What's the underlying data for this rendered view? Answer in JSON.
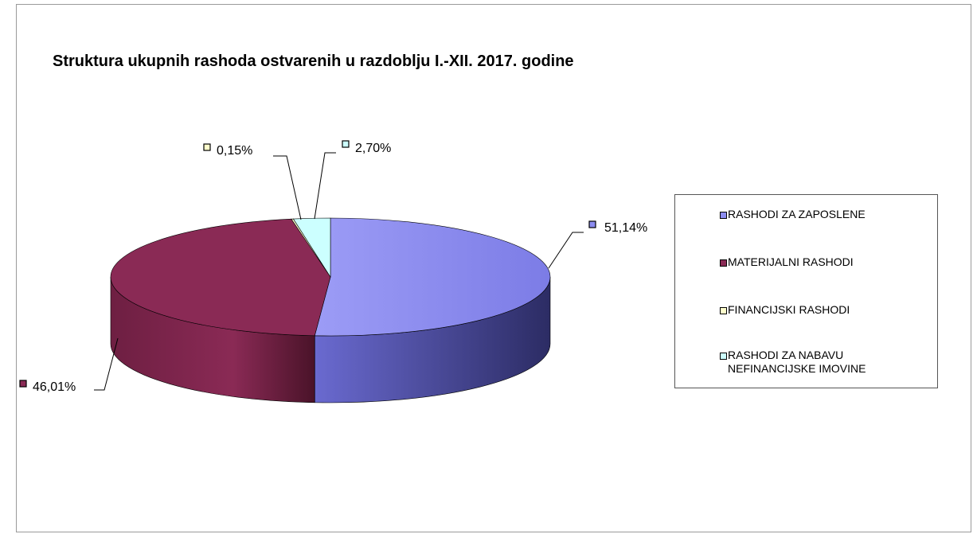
{
  "chart_data": {
    "type": "pie",
    "title": "Struktura ukupnih rashoda ostvarenih u razdoblju I.-XII. 2017. godine",
    "labels": [
      "RASHODI ZA ZAPOSLENE",
      "MATERIJALNI RASHODI",
      "FINANCIJSKI RASHODI",
      "RASHODI ZA NABAVU NEFINANCIJSKE IMOVINE"
    ],
    "values": [
      51.14,
      46.01,
      0.15,
      2.7
    ],
    "data_labels": [
      "51,14%",
      "46,01%",
      "0,15%",
      "2,70%"
    ],
    "colors": [
      "#8c8cf0",
      "#8a2a55",
      "#ffffcc",
      "#ccffff"
    ],
    "legend_position": "right",
    "three_d": true
  },
  "legend": {
    "items": [
      {
        "label_line1": "RASHODI ZA ZAPOSLENE",
        "label_line2": ""
      },
      {
        "label_line1": "MATERIJALNI RASHODI",
        "label_line2": ""
      },
      {
        "label_line1": "FINANCIJSKI RASHODI",
        "label_line2": ""
      },
      {
        "label_line1": "RASHODI ZA NABAVU",
        "label_line2": "NEFINANCIJSKE IMOVINE"
      }
    ]
  }
}
